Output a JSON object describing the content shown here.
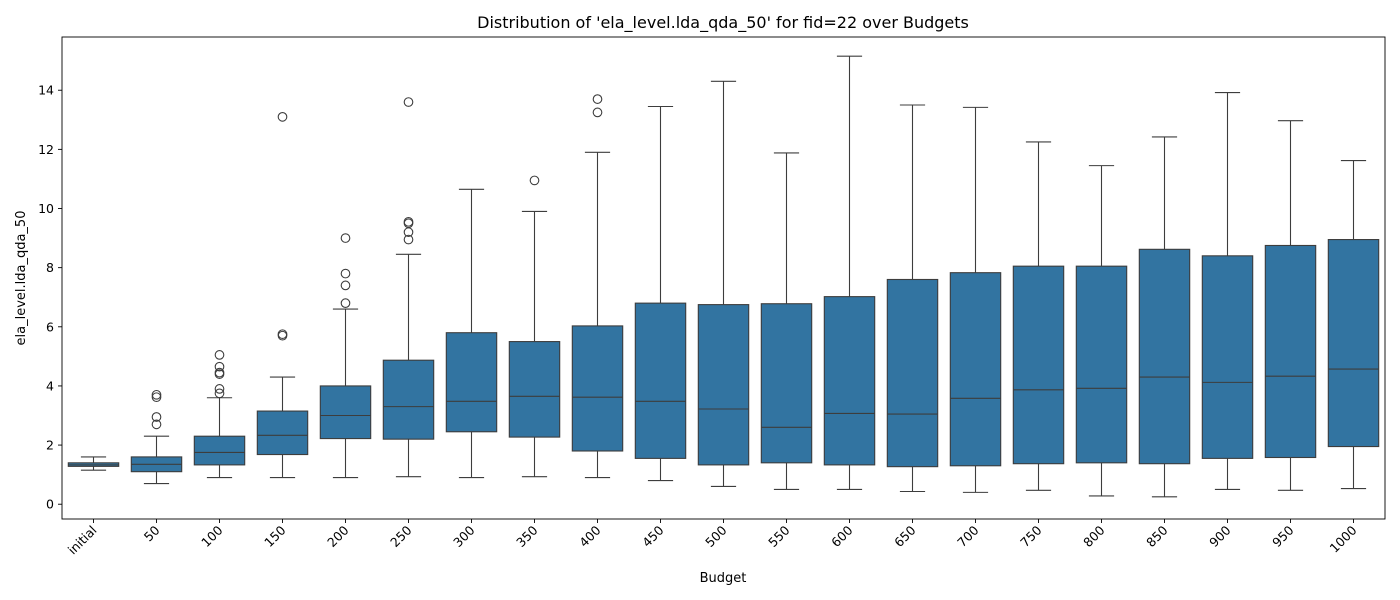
{
  "chart_data": {
    "type": "box",
    "title": "Distribution of 'ela_level.lda_qda_50' for fid=22 over Budgets",
    "xlabel": "Budget",
    "ylabel": "ela_level.lda_qda_50",
    "ylim": [
      -0.5,
      15.8
    ],
    "yticks": [
      0,
      2,
      4,
      6,
      8,
      10,
      12,
      14
    ],
    "grid": false,
    "legend": "none",
    "box_color": "#3274a1",
    "line_color": "#3d3d3d",
    "categories": [
      "initial",
      "50",
      "100",
      "150",
      "200",
      "250",
      "300",
      "350",
      "400",
      "450",
      "500",
      "550",
      "600",
      "650",
      "700",
      "750",
      "800",
      "850",
      "900",
      "950",
      "1000"
    ],
    "boxes": [
      {
        "category": "initial",
        "whislo": 1.15,
        "q1": 1.28,
        "median": 1.33,
        "q3": 1.4,
        "whishi": 1.6,
        "fliers": []
      },
      {
        "category": "50",
        "whislo": 0.7,
        "q1": 1.1,
        "median": 1.35,
        "q3": 1.6,
        "whishi": 2.3,
        "fliers": [
          2.7,
          2.95,
          3.62,
          3.7
        ]
      },
      {
        "category": "100",
        "whislo": 0.9,
        "q1": 1.33,
        "median": 1.75,
        "q3": 2.3,
        "whishi": 3.6,
        "fliers": [
          3.75,
          3.9,
          4.4,
          4.45,
          4.65,
          5.05
        ]
      },
      {
        "category": "150",
        "whislo": 0.9,
        "q1": 1.68,
        "median": 2.33,
        "q3": 3.15,
        "whishi": 4.3,
        "fliers": [
          5.7,
          5.75,
          13.1
        ]
      },
      {
        "category": "200",
        "whislo": 0.9,
        "q1": 2.22,
        "median": 3.0,
        "q3": 4.0,
        "whishi": 6.6,
        "fliers": [
          6.8,
          7.4,
          7.8,
          9.0
        ]
      },
      {
        "category": "250",
        "whislo": 0.93,
        "q1": 2.2,
        "median": 3.3,
        "q3": 4.87,
        "whishi": 8.45,
        "fliers": [
          8.95,
          9.2,
          9.5,
          9.55,
          13.6
        ]
      },
      {
        "category": "300",
        "whislo": 0.9,
        "q1": 2.45,
        "median": 3.48,
        "q3": 5.8,
        "whishi": 10.65,
        "fliers": []
      },
      {
        "category": "350",
        "whislo": 0.93,
        "q1": 2.27,
        "median": 3.65,
        "q3": 5.5,
        "whishi": 9.9,
        "fliers": [
          10.95
        ]
      },
      {
        "category": "400",
        "whislo": 0.9,
        "q1": 1.8,
        "median": 3.62,
        "q3": 6.03,
        "whishi": 11.9,
        "fliers": [
          13.25,
          13.7
        ]
      },
      {
        "category": "450",
        "whislo": 0.8,
        "q1": 1.55,
        "median": 3.48,
        "q3": 6.8,
        "whishi": 13.45,
        "fliers": []
      },
      {
        "category": "500",
        "whislo": 0.6,
        "q1": 1.33,
        "median": 3.22,
        "q3": 6.75,
        "whishi": 14.3,
        "fliers": []
      },
      {
        "category": "550",
        "whislo": 0.5,
        "q1": 1.4,
        "median": 2.6,
        "q3": 6.78,
        "whishi": 11.88,
        "fliers": []
      },
      {
        "category": "600",
        "whislo": 0.5,
        "q1": 1.33,
        "median": 3.07,
        "q3": 7.02,
        "whishi": 15.15,
        "fliers": []
      },
      {
        "category": "650",
        "whislo": 0.43,
        "q1": 1.27,
        "median": 3.05,
        "q3": 7.6,
        "whishi": 13.5,
        "fliers": []
      },
      {
        "category": "700",
        "whislo": 0.4,
        "q1": 1.3,
        "median": 3.58,
        "q3": 7.83,
        "whishi": 13.42,
        "fliers": []
      },
      {
        "category": "750",
        "whislo": 0.47,
        "q1": 1.37,
        "median": 3.87,
        "q3": 8.05,
        "whishi": 12.25,
        "fliers": []
      },
      {
        "category": "800",
        "whislo": 0.28,
        "q1": 1.4,
        "median": 3.92,
        "q3": 8.05,
        "whishi": 11.45,
        "fliers": []
      },
      {
        "category": "850",
        "whislo": 0.25,
        "q1": 1.37,
        "median": 4.3,
        "q3": 8.62,
        "whishi": 12.42,
        "fliers": []
      },
      {
        "category": "900",
        "whislo": 0.5,
        "q1": 1.55,
        "median": 4.12,
        "q3": 8.4,
        "whishi": 13.92,
        "fliers": []
      },
      {
        "category": "950",
        "whislo": 0.47,
        "q1": 1.58,
        "median": 4.33,
        "q3": 8.75,
        "whishi": 12.97,
        "fliers": []
      },
      {
        "category": "1000",
        "whislo": 0.53,
        "q1": 1.95,
        "median": 4.57,
        "q3": 8.95,
        "whishi": 11.62,
        "fliers": []
      }
    ]
  }
}
